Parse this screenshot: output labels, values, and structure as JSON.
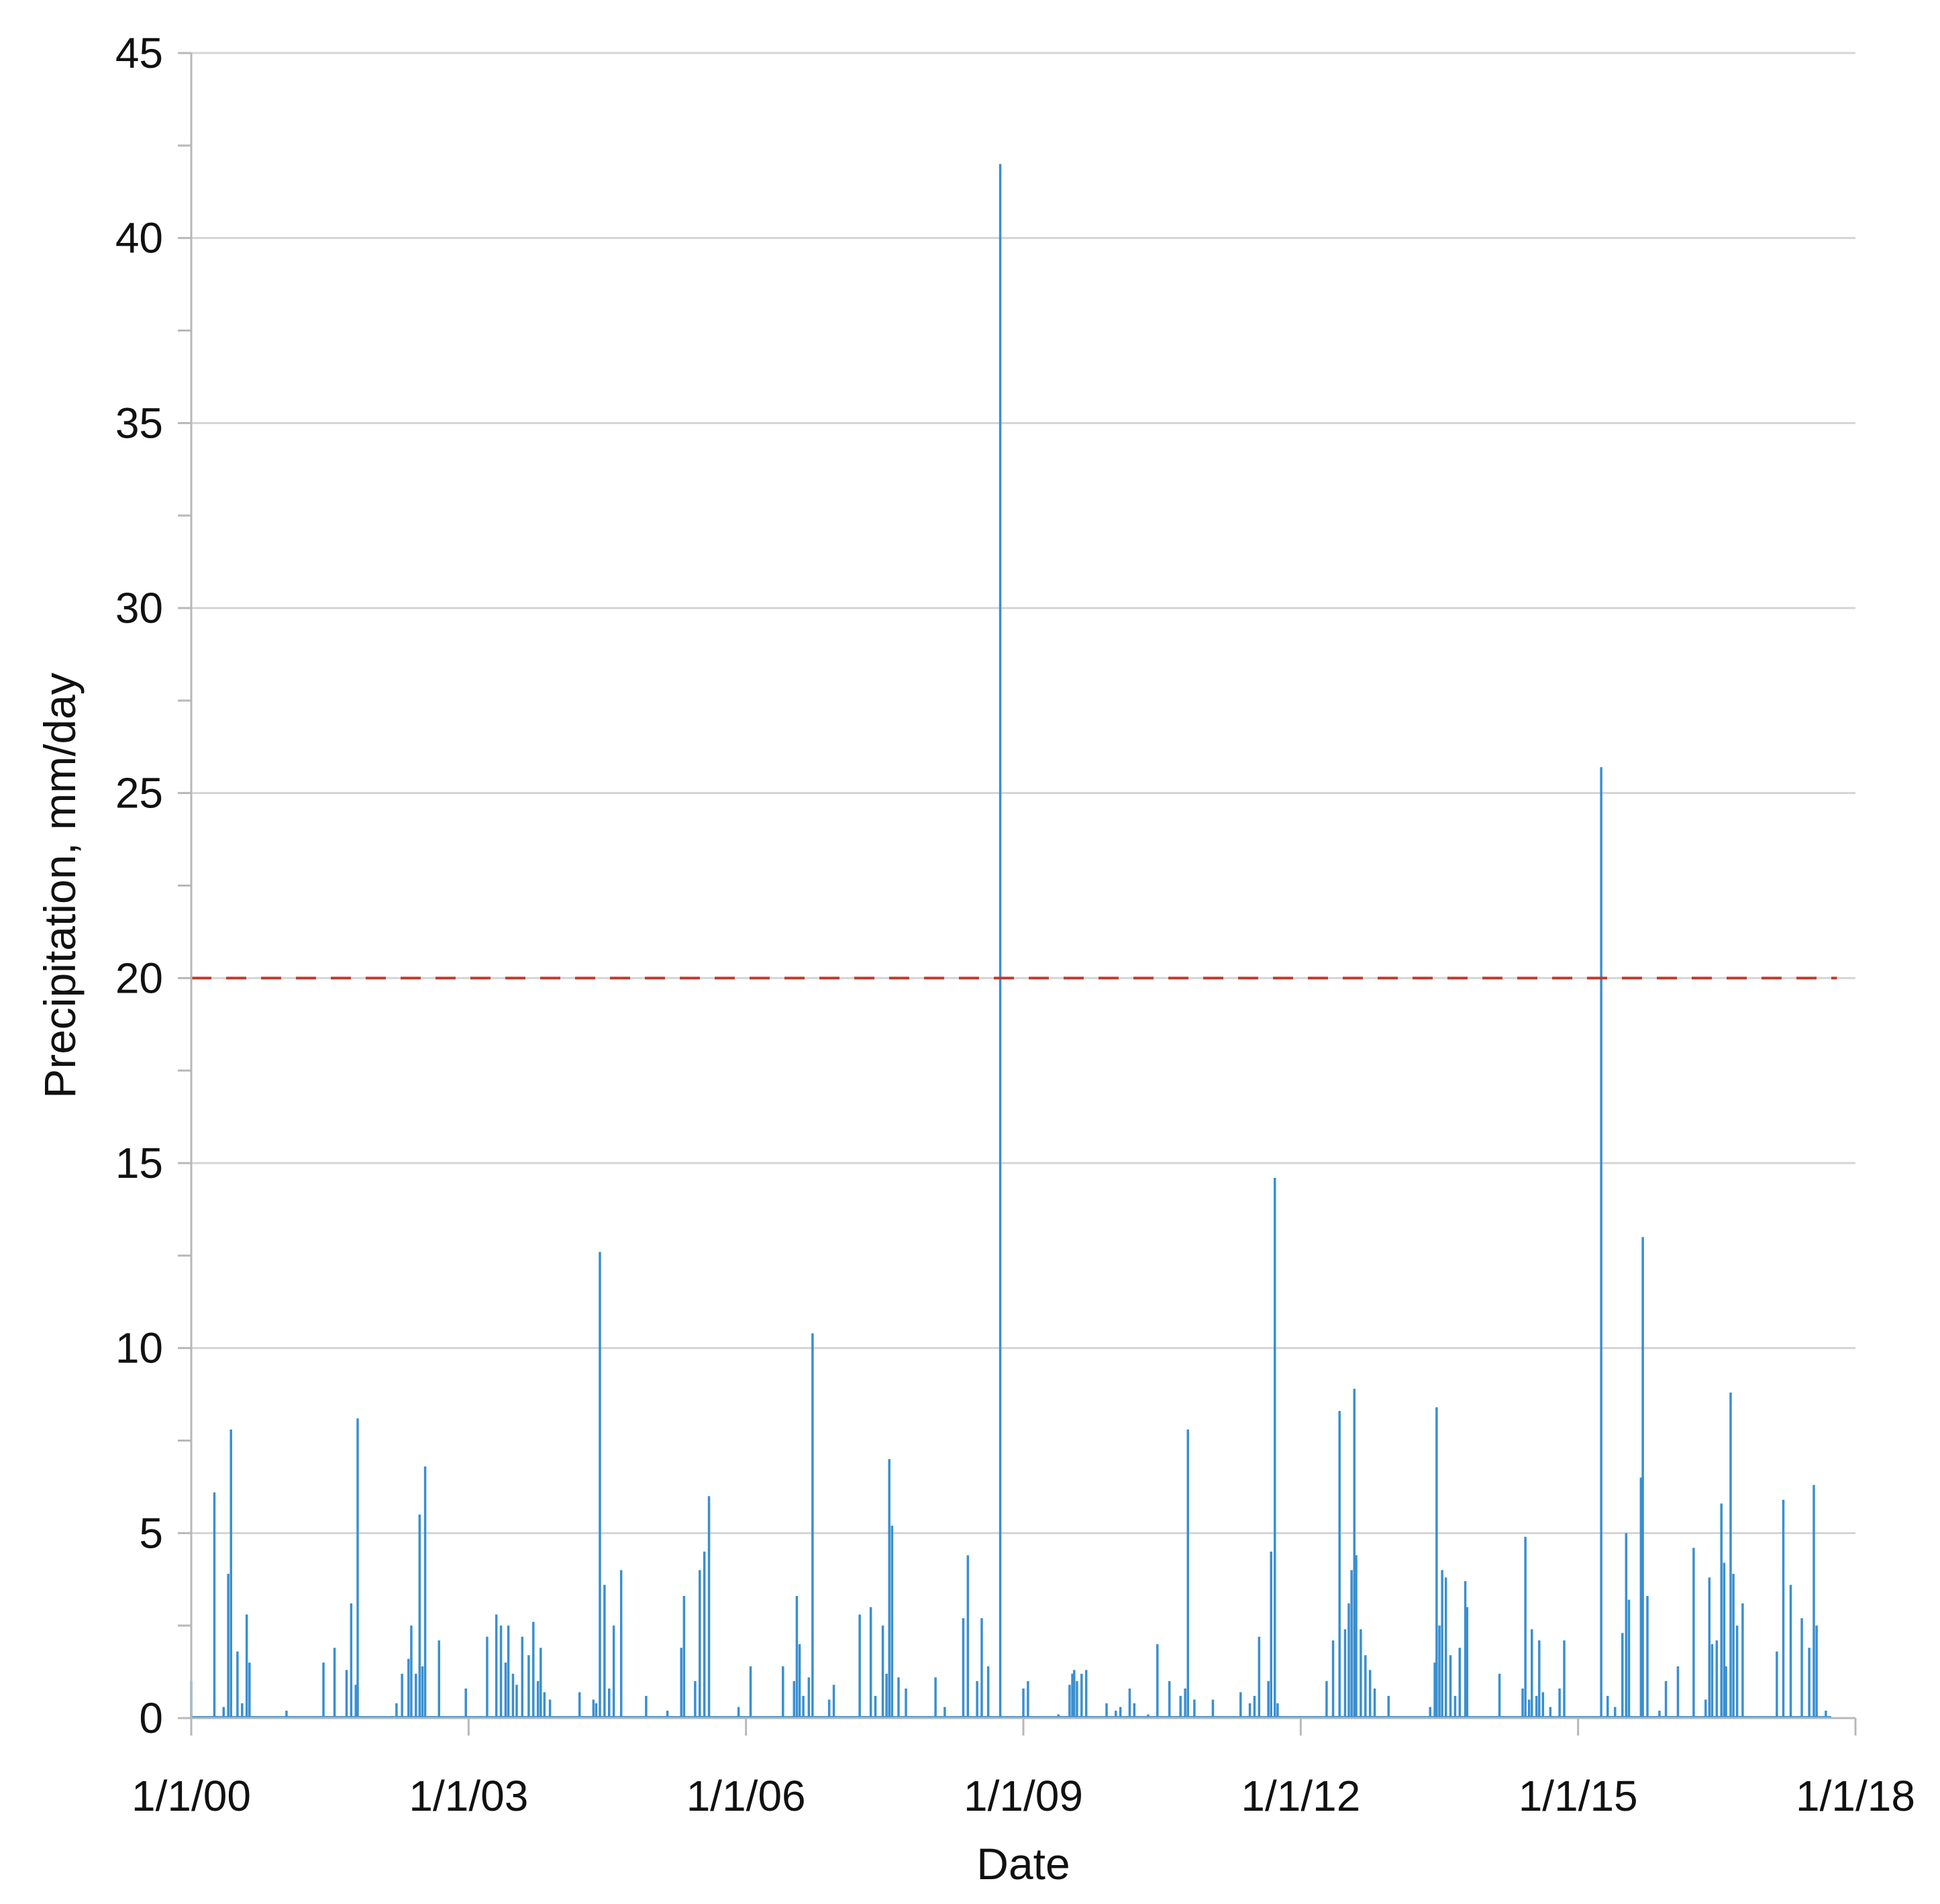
{
  "chart_data": {
    "type": "line",
    "title": "",
    "xlabel": "Date",
    "ylabel": "Precipitation, mm/day",
    "ylim": [
      0,
      45
    ],
    "y_ticks": [
      0,
      5,
      10,
      15,
      20,
      25,
      30,
      35,
      40,
      45
    ],
    "y_tick_labels": [
      "0",
      "5",
      "10",
      "15",
      "20",
      "25",
      "30",
      "35",
      "40",
      "45"
    ],
    "x_range_years": [
      2000,
      2018
    ],
    "x_ticks": [
      2000,
      2003,
      2006,
      2009,
      2012,
      2015,
      2018
    ],
    "x_tick_labels": [
      "1/1/00",
      "1/1/03",
      "1/1/06",
      "1/1/09",
      "1/1/12",
      "1/1/15",
      "1/1/18"
    ],
    "grid": true,
    "legend": "none",
    "threshold": {
      "value": 20,
      "style": "dashed",
      "color": "#c0392b",
      "x_end": 2017.8
    },
    "series": [
      {
        "name": "Precipitation",
        "color": "#3a8fd0",
        "x_unit": "decimal year",
        "points": [
          [
            2000.0,
            1.0
          ],
          [
            2000.25,
            6.1
          ],
          [
            2000.35,
            0.3
          ],
          [
            2000.4,
            3.9
          ],
          [
            2000.43,
            7.8
          ],
          [
            2000.5,
            1.8
          ],
          [
            2000.55,
            0.4
          ],
          [
            2000.6,
            2.8
          ],
          [
            2000.63,
            1.5
          ],
          [
            2001.03,
            0.2
          ],
          [
            2001.43,
            1.5
          ],
          [
            2001.55,
            1.9
          ],
          [
            2001.68,
            1.3
          ],
          [
            2001.73,
            3.1
          ],
          [
            2001.78,
            0.9
          ],
          [
            2001.8,
            8.1
          ],
          [
            2002.22,
            0.4
          ],
          [
            2002.28,
            1.2
          ],
          [
            2002.35,
            1.6
          ],
          [
            2002.38,
            2.5
          ],
          [
            2002.43,
            1.2
          ],
          [
            2002.47,
            5.5
          ],
          [
            2002.5,
            1.4
          ],
          [
            2002.53,
            6.8
          ],
          [
            2002.68,
            2.1
          ],
          [
            2002.97,
            0.8
          ],
          [
            2003.2,
            2.2
          ],
          [
            2003.3,
            2.8
          ],
          [
            2003.35,
            2.5
          ],
          [
            2003.4,
            1.5
          ],
          [
            2003.43,
            2.5
          ],
          [
            2003.48,
            1.2
          ],
          [
            2003.52,
            0.9
          ],
          [
            2003.58,
            2.2
          ],
          [
            2003.65,
            1.7
          ],
          [
            2003.7,
            2.6
          ],
          [
            2003.75,
            1.0
          ],
          [
            2003.78,
            1.9
          ],
          [
            2003.82,
            0.7
          ],
          [
            2003.88,
            0.5
          ],
          [
            2004.2,
            0.7
          ],
          [
            2004.35,
            0.5
          ],
          [
            2004.38,
            0.4
          ],
          [
            2004.42,
            12.6
          ],
          [
            2004.47,
            3.6
          ],
          [
            2004.52,
            0.8
          ],
          [
            2004.57,
            2.5
          ],
          [
            2004.65,
            4.0
          ],
          [
            2004.92,
            0.6
          ],
          [
            2005.15,
            0.2
          ],
          [
            2005.3,
            1.9
          ],
          [
            2005.33,
            3.3
          ],
          [
            2005.45,
            1.0
          ],
          [
            2005.5,
            4.0
          ],
          [
            2005.55,
            4.5
          ],
          [
            2005.6,
            6.0
          ],
          [
            2005.92,
            0.3
          ],
          [
            2006.05,
            1.4
          ],
          [
            2006.4,
            1.4
          ],
          [
            2006.52,
            1.0
          ],
          [
            2006.55,
            3.3
          ],
          [
            2006.58,
            2.0
          ],
          [
            2006.62,
            0.6
          ],
          [
            2006.68,
            1.1
          ],
          [
            2006.72,
            10.4
          ],
          [
            2006.9,
            0.5
          ],
          [
            2006.95,
            0.9
          ],
          [
            2007.23,
            2.8
          ],
          [
            2007.35,
            3.0
          ],
          [
            2007.4,
            0.6
          ],
          [
            2007.48,
            2.5
          ],
          [
            2007.52,
            1.2
          ],
          [
            2007.55,
            7.0
          ],
          [
            2007.58,
            5.2
          ],
          [
            2007.65,
            1.1
          ],
          [
            2007.73,
            0.8
          ],
          [
            2008.05,
            1.1
          ],
          [
            2008.15,
            0.3
          ],
          [
            2008.35,
            2.7
          ],
          [
            2008.4,
            4.4
          ],
          [
            2008.5,
            1.0
          ],
          [
            2008.55,
            2.7
          ],
          [
            2008.62,
            1.4
          ],
          [
            2008.75,
            42.0
          ],
          [
            2009.0,
            0.8
          ],
          [
            2009.05,
            1.0
          ],
          [
            2009.38,
            0.1
          ],
          [
            2009.5,
            0.9
          ],
          [
            2009.53,
            1.2
          ],
          [
            2009.55,
            1.3
          ],
          [
            2009.58,
            1.0
          ],
          [
            2009.63,
            1.2
          ],
          [
            2009.68,
            1.3
          ],
          [
            2009.9,
            0.4
          ],
          [
            2010.0,
            0.2
          ],
          [
            2010.05,
            0.3
          ],
          [
            2010.15,
            0.8
          ],
          [
            2010.2,
            0.4
          ],
          [
            2010.35,
            0.1
          ],
          [
            2010.45,
            2.0
          ],
          [
            2010.58,
            1.0
          ],
          [
            2010.7,
            0.6
          ],
          [
            2010.75,
            0.8
          ],
          [
            2010.78,
            7.8
          ],
          [
            2010.85,
            0.5
          ],
          [
            2011.05,
            0.5
          ],
          [
            2011.35,
            0.7
          ],
          [
            2011.45,
            0.4
          ],
          [
            2011.5,
            0.6
          ],
          [
            2011.55,
            2.2
          ],
          [
            2011.65,
            1.0
          ],
          [
            2011.68,
            4.5
          ],
          [
            2011.72,
            14.6
          ],
          [
            2011.75,
            0.4
          ],
          [
            2012.28,
            1.0
          ],
          [
            2012.35,
            2.1
          ],
          [
            2012.42,
            8.3
          ],
          [
            2012.48,
            2.4
          ],
          [
            2012.52,
            3.1
          ],
          [
            2012.55,
            4.0
          ],
          [
            2012.58,
            8.9
          ],
          [
            2012.6,
            4.4
          ],
          [
            2012.65,
            2.4
          ],
          [
            2012.7,
            1.7
          ],
          [
            2012.75,
            1.3
          ],
          [
            2012.8,
            0.8
          ],
          [
            2012.95,
            0.6
          ],
          [
            2013.4,
            0.3
          ],
          [
            2013.45,
            1.5
          ],
          [
            2013.47,
            8.4
          ],
          [
            2013.5,
            2.5
          ],
          [
            2013.53,
            4.0
          ],
          [
            2013.57,
            3.8
          ],
          [
            2013.62,
            1.7
          ],
          [
            2013.67,
            0.6
          ],
          [
            2013.72,
            1.9
          ],
          [
            2013.78,
            3.7
          ],
          [
            2013.8,
            3.0
          ],
          [
            2014.15,
            1.2
          ],
          [
            2014.4,
            0.8
          ],
          [
            2014.43,
            4.9
          ],
          [
            2014.47,
            0.5
          ],
          [
            2014.5,
            2.4
          ],
          [
            2014.55,
            0.6
          ],
          [
            2014.58,
            2.1
          ],
          [
            2014.62,
            0.7
          ],
          [
            2014.7,
            0.3
          ],
          [
            2014.8,
            0.8
          ],
          [
            2014.85,
            2.1
          ],
          [
            2015.25,
            25.7
          ],
          [
            2015.32,
            0.6
          ],
          [
            2015.4,
            0.3
          ],
          [
            2015.48,
            2.3
          ],
          [
            2015.52,
            5.0
          ],
          [
            2015.55,
            3.2
          ],
          [
            2015.68,
            6.5
          ],
          [
            2015.7,
            13.0
          ],
          [
            2015.75,
            3.3
          ],
          [
            2015.88,
            0.2
          ],
          [
            2015.95,
            1.0
          ],
          [
            2016.08,
            1.4
          ],
          [
            2016.25,
            4.6
          ],
          [
            2016.38,
            0.5
          ],
          [
            2016.42,
            3.8
          ],
          [
            2016.45,
            2.0
          ],
          [
            2016.5,
            2.1
          ],
          [
            2016.55,
            5.8
          ],
          [
            2016.58,
            4.2
          ],
          [
            2016.6,
            1.4
          ],
          [
            2016.65,
            8.8
          ],
          [
            2016.68,
            3.9
          ],
          [
            2016.72,
            2.5
          ],
          [
            2016.78,
            3.1
          ],
          [
            2017.15,
            1.8
          ],
          [
            2017.22,
            5.9
          ],
          [
            2017.3,
            3.6
          ],
          [
            2017.42,
            2.7
          ],
          [
            2017.5,
            1.9
          ],
          [
            2017.55,
            6.3
          ],
          [
            2017.58,
            2.5
          ],
          [
            2017.68,
            0.2
          ]
        ]
      }
    ]
  }
}
